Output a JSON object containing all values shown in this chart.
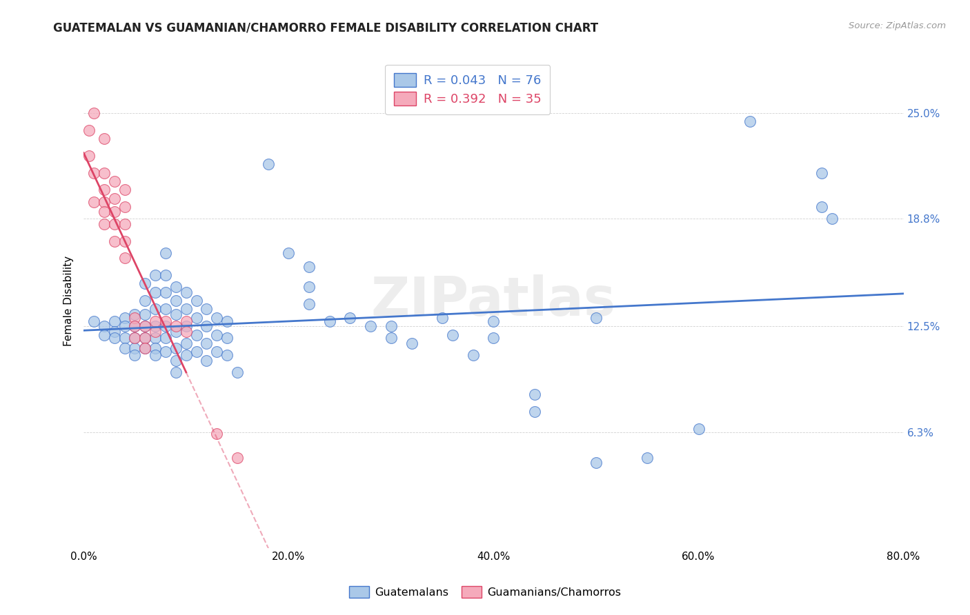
{
  "title": "GUATEMALAN VS GUAMANIAN/CHAMORRO FEMALE DISABILITY CORRELATION CHART",
  "source": "Source: ZipAtlas.com",
  "ylabel": "Female Disability",
  "xlim": [
    0.0,
    0.8
  ],
  "ylim": [
    -0.005,
    0.285
  ],
  "xtick_labels": [
    "0.0%",
    "20.0%",
    "40.0%",
    "60.0%",
    "80.0%"
  ],
  "xtick_vals": [
    0.0,
    0.2,
    0.4,
    0.6,
    0.8
  ],
  "ytick_labels": [
    "6.3%",
    "12.5%",
    "18.8%",
    "25.0%"
  ],
  "ytick_vals": [
    0.063,
    0.125,
    0.188,
    0.25
  ],
  "blue_color": "#aac8e8",
  "pink_color": "#f5aabb",
  "blue_line_color": "#4477cc",
  "pink_line_color": "#dd4466",
  "watermark": "ZIPatlas",
  "blue_points": [
    [
      0.01,
      0.128
    ],
    [
      0.02,
      0.125
    ],
    [
      0.02,
      0.12
    ],
    [
      0.03,
      0.128
    ],
    [
      0.03,
      0.122
    ],
    [
      0.03,
      0.118
    ],
    [
      0.04,
      0.13
    ],
    [
      0.04,
      0.125
    ],
    [
      0.04,
      0.118
    ],
    [
      0.04,
      0.112
    ],
    [
      0.05,
      0.132
    ],
    [
      0.05,
      0.125
    ],
    [
      0.05,
      0.118
    ],
    [
      0.05,
      0.112
    ],
    [
      0.05,
      0.108
    ],
    [
      0.06,
      0.15
    ],
    [
      0.06,
      0.14
    ],
    [
      0.06,
      0.132
    ],
    [
      0.06,
      0.125
    ],
    [
      0.06,
      0.118
    ],
    [
      0.06,
      0.112
    ],
    [
      0.07,
      0.155
    ],
    [
      0.07,
      0.145
    ],
    [
      0.07,
      0.135
    ],
    [
      0.07,
      0.125
    ],
    [
      0.07,
      0.118
    ],
    [
      0.07,
      0.112
    ],
    [
      0.07,
      0.108
    ],
    [
      0.08,
      0.168
    ],
    [
      0.08,
      0.155
    ],
    [
      0.08,
      0.145
    ],
    [
      0.08,
      0.135
    ],
    [
      0.08,
      0.125
    ],
    [
      0.08,
      0.118
    ],
    [
      0.08,
      0.11
    ],
    [
      0.09,
      0.148
    ],
    [
      0.09,
      0.14
    ],
    [
      0.09,
      0.132
    ],
    [
      0.09,
      0.122
    ],
    [
      0.09,
      0.112
    ],
    [
      0.09,
      0.105
    ],
    [
      0.09,
      0.098
    ],
    [
      0.1,
      0.145
    ],
    [
      0.1,
      0.135
    ],
    [
      0.1,
      0.125
    ],
    [
      0.1,
      0.115
    ],
    [
      0.1,
      0.108
    ],
    [
      0.11,
      0.14
    ],
    [
      0.11,
      0.13
    ],
    [
      0.11,
      0.12
    ],
    [
      0.11,
      0.11
    ],
    [
      0.12,
      0.135
    ],
    [
      0.12,
      0.125
    ],
    [
      0.12,
      0.115
    ],
    [
      0.12,
      0.105
    ],
    [
      0.13,
      0.13
    ],
    [
      0.13,
      0.12
    ],
    [
      0.13,
      0.11
    ],
    [
      0.14,
      0.128
    ],
    [
      0.14,
      0.118
    ],
    [
      0.14,
      0.108
    ],
    [
      0.15,
      0.098
    ],
    [
      0.18,
      0.22
    ],
    [
      0.2,
      0.168
    ],
    [
      0.22,
      0.16
    ],
    [
      0.22,
      0.148
    ],
    [
      0.22,
      0.138
    ],
    [
      0.24,
      0.128
    ],
    [
      0.26,
      0.13
    ],
    [
      0.28,
      0.125
    ],
    [
      0.3,
      0.125
    ],
    [
      0.3,
      0.118
    ],
    [
      0.32,
      0.115
    ],
    [
      0.35,
      0.13
    ],
    [
      0.36,
      0.12
    ],
    [
      0.38,
      0.108
    ],
    [
      0.4,
      0.128
    ],
    [
      0.4,
      0.118
    ],
    [
      0.44,
      0.085
    ],
    [
      0.44,
      0.075
    ],
    [
      0.5,
      0.13
    ],
    [
      0.5,
      0.045
    ],
    [
      0.55,
      0.048
    ],
    [
      0.6,
      0.065
    ],
    [
      0.65,
      0.245
    ],
    [
      0.72,
      0.215
    ],
    [
      0.72,
      0.195
    ],
    [
      0.73,
      0.188
    ]
  ],
  "pink_points": [
    [
      0.005,
      0.24
    ],
    [
      0.005,
      0.225
    ],
    [
      0.01,
      0.25
    ],
    [
      0.01,
      0.215
    ],
    [
      0.01,
      0.198
    ],
    [
      0.02,
      0.235
    ],
    [
      0.02,
      0.215
    ],
    [
      0.02,
      0.205
    ],
    [
      0.02,
      0.198
    ],
    [
      0.02,
      0.192
    ],
    [
      0.02,
      0.185
    ],
    [
      0.03,
      0.21
    ],
    [
      0.03,
      0.2
    ],
    [
      0.03,
      0.192
    ],
    [
      0.03,
      0.185
    ],
    [
      0.03,
      0.175
    ],
    [
      0.04,
      0.205
    ],
    [
      0.04,
      0.195
    ],
    [
      0.04,
      0.185
    ],
    [
      0.04,
      0.175
    ],
    [
      0.04,
      0.165
    ],
    [
      0.05,
      0.13
    ],
    [
      0.05,
      0.125
    ],
    [
      0.05,
      0.118
    ],
    [
      0.06,
      0.125
    ],
    [
      0.06,
      0.118
    ],
    [
      0.06,
      0.112
    ],
    [
      0.07,
      0.128
    ],
    [
      0.07,
      0.122
    ],
    [
      0.08,
      0.128
    ],
    [
      0.09,
      0.125
    ],
    [
      0.1,
      0.128
    ],
    [
      0.1,
      0.122
    ],
    [
      0.13,
      0.062
    ],
    [
      0.15,
      0.048
    ]
  ]
}
